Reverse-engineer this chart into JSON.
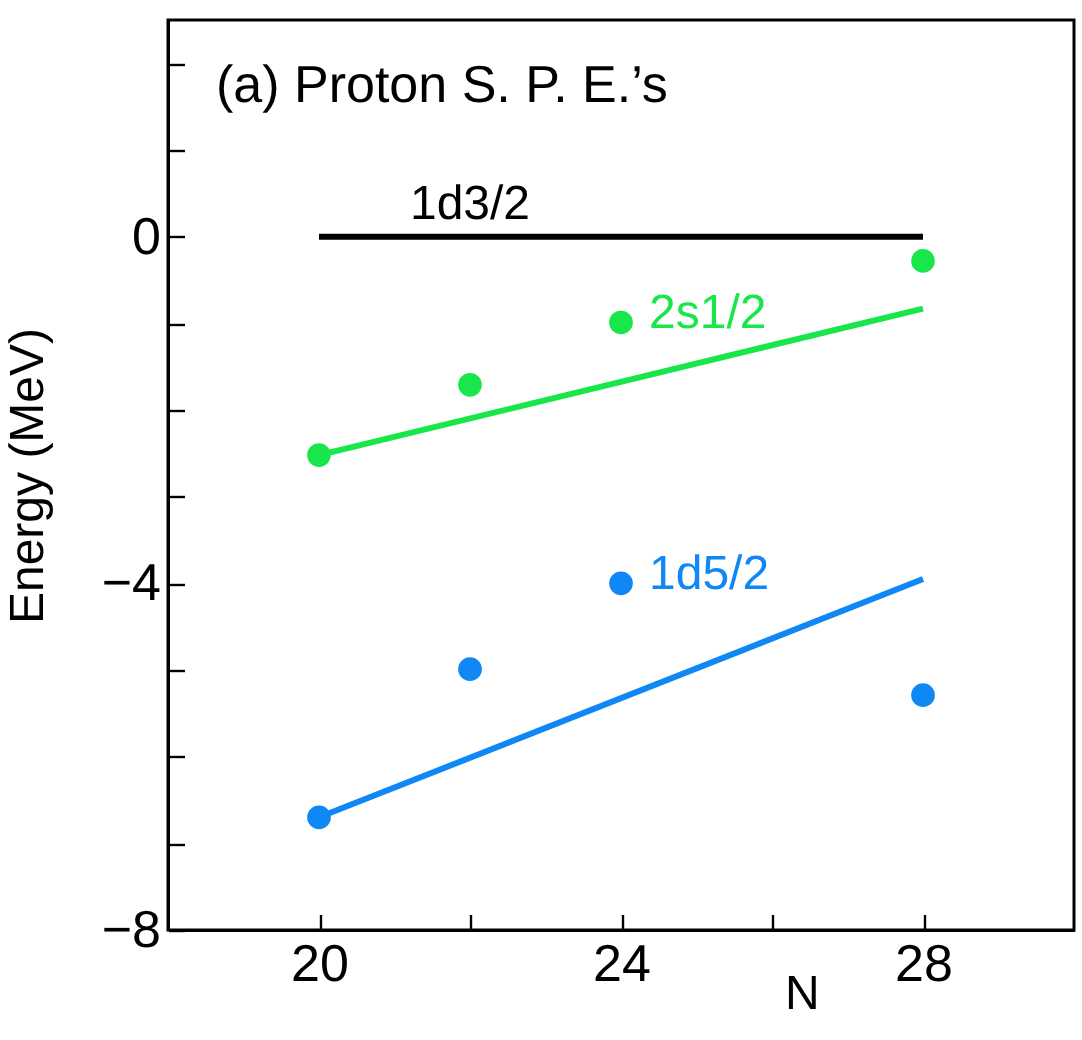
{
  "chart_data": {
    "type": "scatter",
    "title": "(a) Proton S. P. E.’s",
    "xlabel": "N",
    "ylabel": "Energy (MeV)",
    "xlim": [
      18,
      30
    ],
    "xticks": [
      20,
      {
        "value": 22,
        "label": null
      },
      24,
      {
        "value": 26,
        "label": null
      },
      28
    ],
    "ylim": [
      -8,
      2.5
    ],
    "yticks": [
      -8,
      {
        "value": -7,
        "label": null
      },
      {
        "value": -6,
        "label": null
      },
      {
        "value": -5,
        "label": null
      },
      -4,
      {
        "value": -3,
        "label": null
      },
      {
        "value": -2,
        "label": null
      },
      {
        "value": -1,
        "label": null
      },
      0,
      {
        "value": 1,
        "label": null
      },
      {
        "value": 2,
        "label": null
      }
    ],
    "series": [
      {
        "name": "1d3/2",
        "type": "line",
        "marker": "none",
        "color": "#000000",
        "x": [
          20,
          28
        ],
        "values": [
          0,
          0
        ]
      },
      {
        "name": "2s1/2",
        "marker": "circle",
        "color": "#19e64b",
        "x": [
          20,
          22,
          24,
          28
        ],
        "values": [
          -2.52,
          -1.71,
          -0.99,
          -0.28
        ]
      },
      {
        "type": "line",
        "marker": "none",
        "color": "#19e64b",
        "x": [
          20,
          28
        ],
        "values": [
          -2.52,
          -0.83
        ]
      },
      {
        "name": "1d5/2",
        "marker": "circle",
        "color": "#0f87f5",
        "x": [
          20,
          22,
          24,
          28
        ],
        "values": [
          -6.7,
          -4.99,
          -4.0,
          -5.29
        ]
      },
      {
        "type": "line",
        "marker": "none",
        "color": "#0f87f5",
        "x": [
          20,
          28
        ],
        "values": [
          -6.7,
          -3.95
        ]
      }
    ]
  }
}
